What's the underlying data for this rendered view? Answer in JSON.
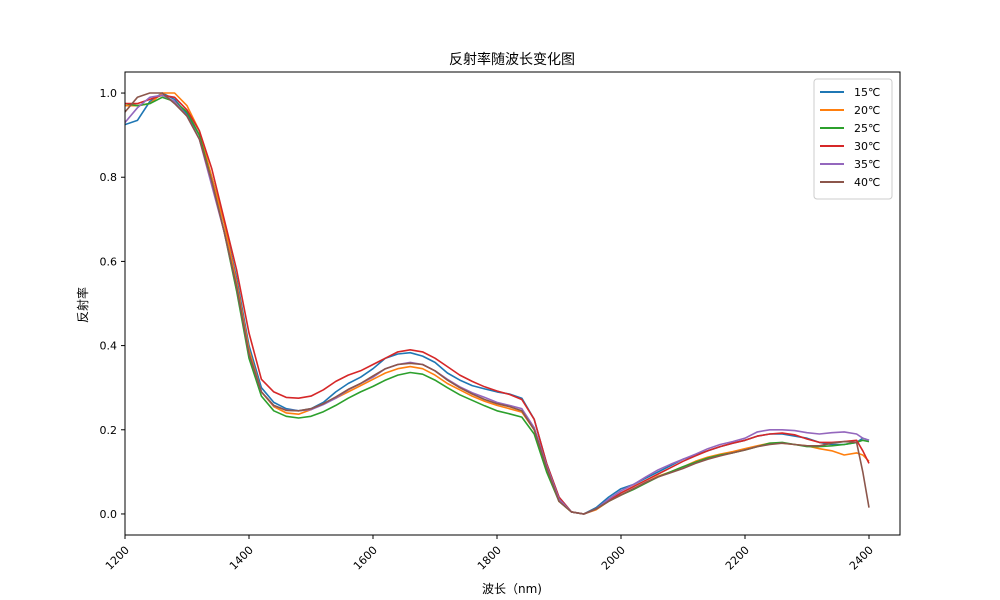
{
  "chart_data": {
    "type": "line",
    "title": "反射率随波长变化图",
    "xlabel": "波长（nm)",
    "ylabel": "反射率",
    "xlim": [
      1200,
      2450
    ],
    "ylim": [
      -0.05,
      1.05
    ],
    "xticks": [
      "1200",
      "1400",
      "1600",
      "1800",
      "2000",
      "2200",
      "2400"
    ],
    "yticks": [
      "0.0",
      "0.2",
      "0.4",
      "0.6",
      "0.8",
      "1.0"
    ],
    "xtick_rotation": 45,
    "grid": false,
    "legend_position": "top-right",
    "x": [
      1200,
      1220,
      1240,
      1260,
      1280,
      1300,
      1320,
      1340,
      1360,
      1380,
      1400,
      1420,
      1440,
      1460,
      1480,
      1500,
      1520,
      1540,
      1560,
      1580,
      1600,
      1620,
      1640,
      1660,
      1680,
      1700,
      1720,
      1740,
      1760,
      1780,
      1800,
      1820,
      1840,
      1860,
      1880,
      1900,
      1920,
      1940,
      1960,
      1980,
      2000,
      2020,
      2040,
      2060,
      2080,
      2100,
      2120,
      2140,
      2160,
      2180,
      2200,
      2220,
      2240,
      2260,
      2280,
      2300,
      2320,
      2340,
      2360,
      2380,
      2390,
      2400
    ],
    "series": [
      {
        "name": "15℃",
        "color": "#1f77b4",
        "values": [
          0.925,
          0.935,
          0.98,
          1.0,
          0.985,
          0.95,
          0.9,
          0.8,
          0.69,
          0.56,
          0.4,
          0.3,
          0.265,
          0.25,
          0.245,
          0.25,
          0.265,
          0.29,
          0.31,
          0.325,
          0.345,
          0.37,
          0.38,
          0.383,
          0.375,
          0.36,
          0.335,
          0.318,
          0.305,
          0.297,
          0.29,
          0.285,
          0.275,
          0.225,
          0.12,
          0.04,
          0.005,
          0.0,
          0.015,
          0.04,
          0.06,
          0.07,
          0.085,
          0.1,
          0.115,
          0.13,
          0.14,
          0.15,
          0.16,
          0.168,
          0.175,
          0.185,
          0.19,
          0.19,
          0.185,
          0.18,
          0.17,
          0.165,
          0.165,
          0.17,
          0.18,
          0.175
        ]
      },
      {
        "name": "20℃",
        "color": "#ff7f0e",
        "values": [
          0.97,
          0.97,
          0.975,
          1.0,
          1.0,
          0.97,
          0.91,
          0.8,
          0.69,
          0.55,
          0.39,
          0.29,
          0.255,
          0.24,
          0.237,
          0.248,
          0.262,
          0.275,
          0.29,
          0.305,
          0.32,
          0.335,
          0.345,
          0.35,
          0.345,
          0.33,
          0.31,
          0.295,
          0.28,
          0.268,
          0.258,
          0.25,
          0.242,
          0.2,
          0.11,
          0.03,
          0.005,
          0.0,
          0.01,
          0.03,
          0.045,
          0.06,
          0.075,
          0.09,
          0.1,
          0.112,
          0.125,
          0.135,
          0.142,
          0.148,
          0.155,
          0.162,
          0.168,
          0.168,
          0.165,
          0.162,
          0.155,
          0.15,
          0.14,
          0.145,
          0.14,
          0.125
        ]
      },
      {
        "name": "25℃",
        "color": "#2ca02c",
        "values": [
          0.975,
          0.97,
          0.975,
          0.99,
          0.98,
          0.955,
          0.9,
          0.79,
          0.67,
          0.53,
          0.37,
          0.28,
          0.245,
          0.232,
          0.228,
          0.232,
          0.243,
          0.258,
          0.275,
          0.29,
          0.303,
          0.318,
          0.33,
          0.336,
          0.332,
          0.318,
          0.3,
          0.283,
          0.27,
          0.257,
          0.245,
          0.238,
          0.23,
          0.19,
          0.1,
          0.03,
          0.005,
          0.0,
          0.012,
          0.03,
          0.045,
          0.058,
          0.073,
          0.088,
          0.1,
          0.112,
          0.123,
          0.133,
          0.14,
          0.145,
          0.152,
          0.16,
          0.168,
          0.17,
          0.165,
          0.16,
          0.16,
          0.162,
          0.165,
          0.17,
          0.175,
          0.172
        ]
      },
      {
        "name": "30℃",
        "color": "#d62728",
        "values": [
          0.975,
          0.975,
          0.985,
          0.995,
          0.99,
          0.96,
          0.91,
          0.82,
          0.7,
          0.58,
          0.43,
          0.32,
          0.29,
          0.277,
          0.275,
          0.28,
          0.295,
          0.315,
          0.33,
          0.34,
          0.355,
          0.37,
          0.385,
          0.39,
          0.385,
          0.37,
          0.35,
          0.33,
          0.315,
          0.302,
          0.292,
          0.284,
          0.272,
          0.225,
          0.12,
          0.04,
          0.005,
          0.0,
          0.012,
          0.032,
          0.05,
          0.065,
          0.08,
          0.095,
          0.11,
          0.125,
          0.138,
          0.15,
          0.16,
          0.168,
          0.175,
          0.185,
          0.19,
          0.192,
          0.188,
          0.178,
          0.17,
          0.17,
          0.172,
          0.175,
          0.15,
          0.12
        ]
      },
      {
        "name": "35℃",
        "color": "#9467bd",
        "values": [
          0.93,
          0.965,
          0.99,
          0.995,
          0.98,
          0.945,
          0.89,
          0.78,
          0.67,
          0.54,
          0.38,
          0.29,
          0.257,
          0.247,
          0.245,
          0.248,
          0.26,
          0.275,
          0.295,
          0.31,
          0.325,
          0.345,
          0.355,
          0.36,
          0.355,
          0.34,
          0.32,
          0.302,
          0.288,
          0.277,
          0.265,
          0.258,
          0.25,
          0.205,
          0.115,
          0.035,
          0.005,
          0.0,
          0.012,
          0.035,
          0.055,
          0.07,
          0.088,
          0.105,
          0.118,
          0.13,
          0.142,
          0.155,
          0.165,
          0.172,
          0.18,
          0.195,
          0.2,
          0.2,
          0.198,
          0.193,
          0.19,
          0.193,
          0.195,
          0.19,
          0.18,
          0.175
        ]
      },
      {
        "name": "40℃",
        "color": "#8c564b",
        "values": [
          0.955,
          0.99,
          1.0,
          1.0,
          0.975,
          0.945,
          0.89,
          0.79,
          0.67,
          0.54,
          0.38,
          0.29,
          0.258,
          0.246,
          0.245,
          0.25,
          0.262,
          0.278,
          0.296,
          0.31,
          0.328,
          0.345,
          0.355,
          0.358,
          0.355,
          0.34,
          0.318,
          0.3,
          0.285,
          0.272,
          0.262,
          0.255,
          0.245,
          0.2,
          0.11,
          0.03,
          0.005,
          0.0,
          0.012,
          0.03,
          0.045,
          0.06,
          0.075,
          0.088,
          0.098,
          0.108,
          0.12,
          0.13,
          0.138,
          0.145,
          0.152,
          0.16,
          0.165,
          0.168,
          0.165,
          0.162,
          0.162,
          0.168,
          0.172,
          0.17,
          0.1,
          0.015
        ]
      }
    ]
  }
}
